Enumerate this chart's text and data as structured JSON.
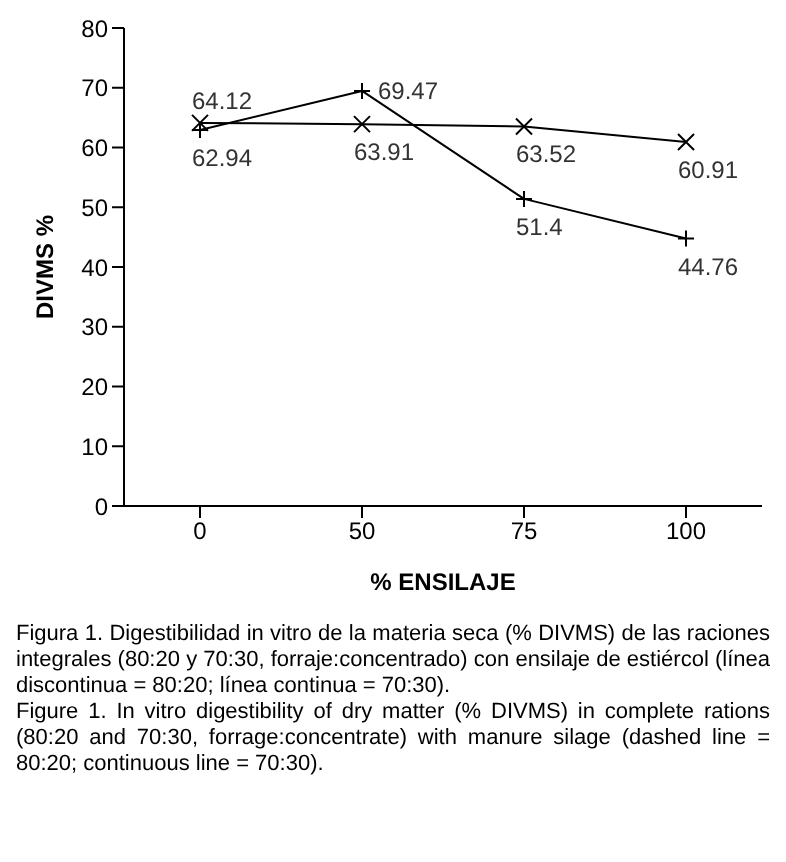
{
  "chart_data": {
    "type": "line",
    "xlabel": "% ENSILAJE",
    "ylabel": "DIVMS %",
    "categories": [
      "0",
      "50",
      "75",
      "100"
    ],
    "series": [
      {
        "color": "#000000",
        "marker": "cross",
        "values": [
          64.12,
          63.91,
          63.52,
          60.91
        ]
      },
      {
        "color": "#000000",
        "marker": "plus",
        "values": [
          62.94,
          69.47,
          51.4,
          44.76
        ]
      }
    ],
    "ylim": [
      0,
      80
    ],
    "yticks": [
      0,
      10,
      20,
      30,
      40,
      50,
      60,
      70,
      80
    ],
    "grid": false,
    "legend": false,
    "data_labels": true,
    "line_style": "solid",
    "annotations": [
      "Figura 1. Digestibilidad in vitro de la materia seca (% DIVMS) de las raciones integrales (80:20 y 70:30, forraje:concentrado) con ensilaje de estiércol (línea discontinua = 80:20; línea continua = 70:30).",
      "Figure 1. In vitro digestibility of dry matter (% DIVMS) in complete rations (80:20 and 70:30, forrage:concentrate) with manure silage (dashed line = 80:20; continuous line = 70:30)."
    ]
  }
}
